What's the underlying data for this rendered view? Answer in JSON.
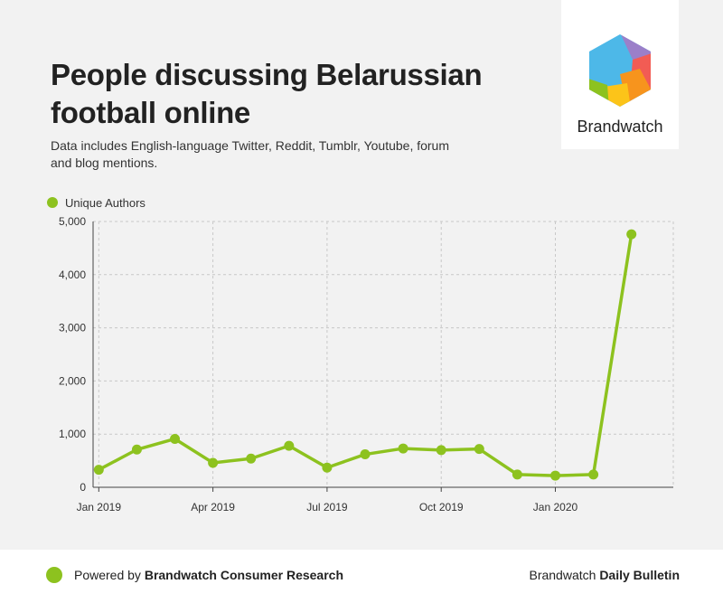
{
  "title": "People discussing Belarussian football online",
  "subtitle": "Data includes English-language Twitter, Reddit, Tumblr, Youtube, forum and blog mentions.",
  "logo": {
    "brand": "Brandwatch"
  },
  "footer": {
    "powered_prefix": "Powered by ",
    "powered_brand": "Brandwatch Consumer Research",
    "bulletin_prefix": "Brandwatch ",
    "bulletin_bold": "Daily Bulletin"
  },
  "colors": {
    "series": "#8dc21f",
    "grid": "#c8c8c8",
    "axis": "#444444"
  },
  "chart_data": {
    "type": "line",
    "title": "People discussing Belarussian football online",
    "xlabel": "",
    "ylabel": "",
    "legend": "top-left",
    "grid": true,
    "ylim": [
      0,
      5000
    ],
    "yticks": [
      0,
      1000,
      2000,
      3000,
      4000,
      5000
    ],
    "ytick_labels": [
      "0",
      "1,000",
      "2,000",
      "3,000",
      "4,000",
      "5,000"
    ],
    "xlim": [
      "2019-01",
      "2020-04"
    ],
    "xticks": [
      {
        "x": "2019-01",
        "label": "Jan 2019"
      },
      {
        "x": "2019-04",
        "label": "Apr 2019"
      },
      {
        "x": "2019-07",
        "label": "Jul 2019"
      },
      {
        "x": "2019-10",
        "label": "Oct 2019"
      },
      {
        "x": "2020-01",
        "label": "Jan 2020"
      }
    ],
    "x": [
      "2019-01",
      "2019-02",
      "2019-03",
      "2019-04",
      "2019-05",
      "2019-06",
      "2019-07",
      "2019-08",
      "2019-09",
      "2019-10",
      "2019-11",
      "2019-12",
      "2020-01",
      "2020-02",
      "2020-03"
    ],
    "series": [
      {
        "name": "Unique Authors",
        "color": "#8dc21f",
        "values": [
          330,
          710,
          910,
          460,
          540,
          780,
          370,
          620,
          730,
          700,
          720,
          240,
          220,
          240,
          4760
        ]
      }
    ]
  }
}
